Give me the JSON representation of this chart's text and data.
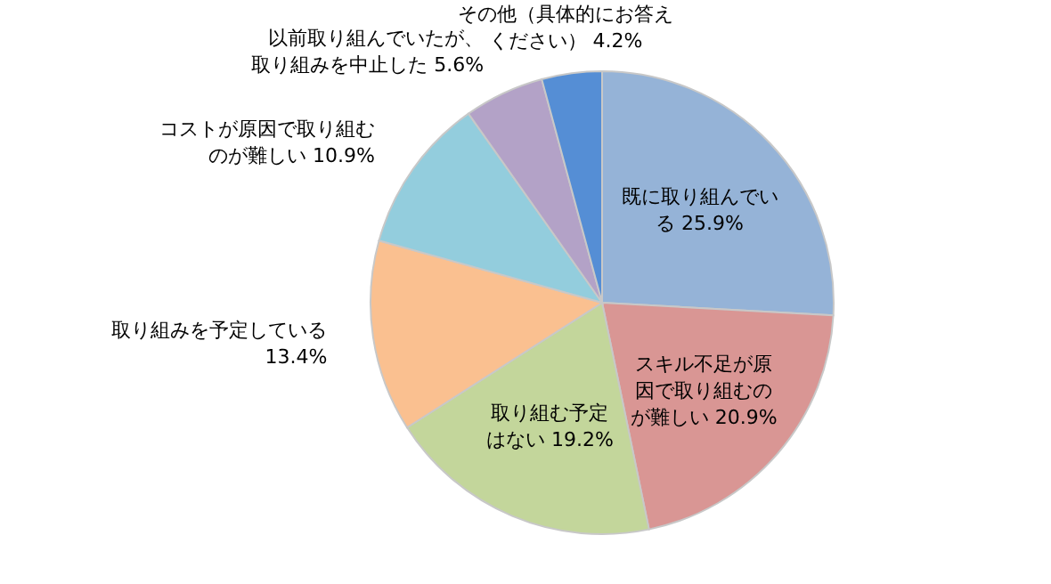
{
  "chart_data": {
    "type": "pie",
    "categories": [
      "既に取り組んでいる",
      "スキル不足が原因で取り組むのが難しい",
      "取り組む予定はない",
      "取り組みを予定している",
      "コストが原因で取り組むのが難しい",
      "以前取り組んでいたが、取り組みを中止した",
      "その他（具体的にお答えください）"
    ],
    "values": [
      25.9,
      20.9,
      19.2,
      13.4,
      10.9,
      5.6,
      4.2
    ],
    "value_labels": [
      "25.9%",
      "20.9%",
      "19.2%",
      "13.4%",
      "10.9%",
      "5.6%",
      "4.2%"
    ],
    "colors": [
      "#95b3d7",
      "#d99694",
      "#c3d69b",
      "#fac090",
      "#93cddd",
      "#b3a2c7",
      "#558ed5"
    ]
  }
}
